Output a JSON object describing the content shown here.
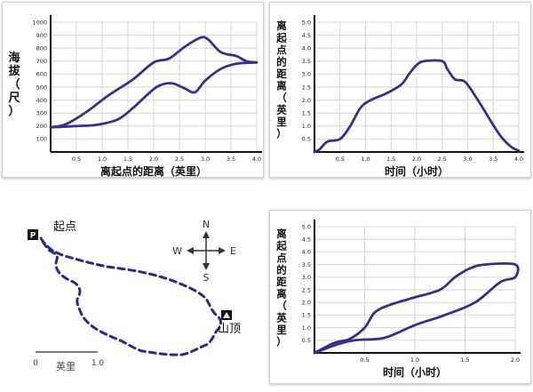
{
  "colors": {
    "curve": "#3a2d8e",
    "grid": "#d6d6d6",
    "axis": "#111111",
    "trail": "#2d2a84"
  },
  "chart_data": [
    {
      "id": "elevation",
      "type": "line",
      "xlabel": "离起点的距离（英里）",
      "ylabel": "海拔（尺）",
      "xlim": [
        0,
        4.0
      ],
      "ylim": [
        0,
        1000
      ],
      "xticks": [
        "0.5",
        "1.0",
        "1.5",
        "2.0",
        "2.5",
        "3.0",
        "3.5",
        "4.0"
      ],
      "yticks": [
        "100",
        "200",
        "300",
        "400",
        "500",
        "600",
        "700",
        "800",
        "900",
        "1000"
      ],
      "grid": true,
      "series": [
        {
          "values": [
            [
              0,
              190
            ],
            [
              0.3,
              215
            ],
            [
              0.7,
              310
            ],
            [
              1.1,
              430
            ],
            [
              1.6,
              560
            ],
            [
              2.0,
              690
            ],
            [
              2.3,
              720
            ],
            [
              2.6,
              810
            ],
            [
              2.9,
              880
            ],
            [
              3.05,
              870
            ],
            [
              3.3,
              770
            ],
            [
              3.6,
              740
            ],
            [
              3.8,
              700
            ],
            [
              4.0,
              690
            ]
          ]
        },
        {
          "values": [
            [
              0,
              190
            ],
            [
              0.5,
              200
            ],
            [
              0.9,
              210
            ],
            [
              1.3,
              250
            ],
            [
              1.6,
              340
            ],
            [
              1.9,
              450
            ],
            [
              2.1,
              510
            ],
            [
              2.35,
              530
            ],
            [
              2.6,
              490
            ],
            [
              2.8,
              460
            ],
            [
              3.0,
              550
            ],
            [
              3.3,
              640
            ],
            [
              3.6,
              680
            ],
            [
              4.0,
              690
            ]
          ]
        }
      ]
    },
    {
      "id": "distance-time-1",
      "type": "line",
      "xlabel": "时间（小时）",
      "ylabel": "离起点的距离（英里）",
      "xlim": [
        0,
        4.0
      ],
      "ylim": [
        0,
        5.0
      ],
      "xticks": [
        "0.5",
        "1.0",
        "1.5",
        "2.0",
        "2.5",
        "3.0",
        "3.5",
        "4.0"
      ],
      "yticks": [
        "0.5",
        "1.0",
        "1.5",
        "2.0",
        "2.5",
        "3.0",
        "3.5",
        "4.0",
        "4.5",
        "5.0"
      ],
      "grid": true,
      "series": [
        {
          "values": [
            [
              0,
              0
            ],
            [
              0.1,
              0.1
            ],
            [
              0.25,
              0.4
            ],
            [
              0.5,
              0.5
            ],
            [
              0.7,
              1.0
            ],
            [
              0.9,
              1.7
            ],
            [
              1.1,
              2.0
            ],
            [
              1.4,
              2.25
            ],
            [
              1.7,
              2.6
            ],
            [
              1.85,
              3.0
            ],
            [
              2.0,
              3.35
            ],
            [
              2.15,
              3.5
            ],
            [
              2.5,
              3.5
            ],
            [
              2.6,
              3.2
            ],
            [
              2.75,
              2.8
            ],
            [
              2.95,
              2.7
            ],
            [
              3.2,
              2.0
            ],
            [
              3.45,
              1.2
            ],
            [
              3.65,
              0.6
            ],
            [
              3.85,
              0.2
            ],
            [
              4.0,
              0.05
            ]
          ]
        }
      ]
    },
    {
      "id": "distance-time-2",
      "type": "line",
      "xlabel": "时间（小时）",
      "ylabel": "离起点的距离（英里）",
      "xlim": [
        0,
        2.0
      ],
      "ylim": [
        0,
        5.0
      ],
      "xticks": [
        "0.5",
        "1.0",
        "1.5",
        "2.0"
      ],
      "yticks": [
        "0.5",
        "1.0",
        "1.5",
        "2.0",
        "2.5",
        "3.0",
        "3.5",
        "4.0",
        "4.5",
        "5.0"
      ],
      "grid": true,
      "series": [
        {
          "values": [
            [
              0,
              0
            ],
            [
              0.2,
              0.4
            ],
            [
              0.35,
              0.55
            ],
            [
              0.5,
              1.0
            ],
            [
              0.6,
              1.6
            ],
            [
              0.75,
              1.9
            ],
            [
              1.0,
              2.2
            ],
            [
              1.25,
              2.5
            ],
            [
              1.4,
              3.0
            ],
            [
              1.55,
              3.35
            ],
            [
              1.7,
              3.5
            ],
            [
              2.0,
              3.5
            ],
            [
              2.0,
              3.0
            ],
            [
              1.85,
              2.8
            ],
            [
              1.6,
              2.0
            ],
            [
              1.3,
              1.5
            ],
            [
              1.0,
              1.1
            ],
            [
              0.7,
              0.6
            ],
            [
              0.4,
              0.5
            ],
            [
              0.2,
              0.3
            ],
            [
              0,
              0
            ]
          ]
        }
      ]
    }
  ],
  "map": {
    "start_label": "起点",
    "start_icon": "P",
    "summit_label": "山顶",
    "compass": {
      "n": "N",
      "s": "S",
      "e": "E",
      "w": "W"
    },
    "scale": {
      "zero": "0",
      "end": "1.0",
      "unit": "英里"
    }
  }
}
